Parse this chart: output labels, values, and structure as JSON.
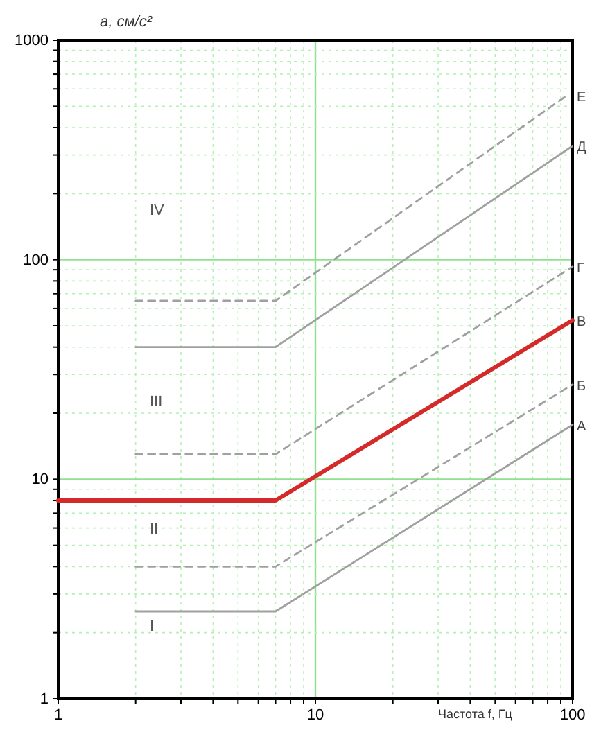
{
  "chart_data": {
    "type": "line",
    "xlabel": "Частота f, Гц",
    "ylabel": "a, см/с²",
    "log": "xy",
    "grid": true,
    "xlim": [
      1,
      100
    ],
    "ylim": [
      1,
      1000
    ],
    "xticks": [
      1,
      {
        "value": 2,
        "label": null
      },
      {
        "value": 3,
        "label": null
      },
      {
        "value": 4,
        "label": null
      },
      {
        "value": 5,
        "label": null
      },
      {
        "value": 6,
        "label": null
      },
      {
        "value": 7,
        "label": null
      },
      {
        "value": 8,
        "label": null
      },
      {
        "value": 9,
        "label": null
      },
      10,
      {
        "value": 20,
        "label": null
      },
      {
        "value": 30,
        "label": null
      },
      {
        "value": 40,
        "label": null
      },
      {
        "value": 50,
        "label": null
      },
      {
        "value": 60,
        "label": null
      },
      {
        "value": 70,
        "label": null
      },
      {
        "value": 80,
        "label": null
      },
      {
        "value": 90,
        "label": null
      },
      100
    ],
    "yticks": [
      1,
      {
        "value": 2,
        "label": null
      },
      {
        "value": 3,
        "label": null
      },
      {
        "value": 4,
        "label": null
      },
      {
        "value": 5,
        "label": null
      },
      {
        "value": 6,
        "label": null
      },
      {
        "value": 7,
        "label": null
      },
      {
        "value": 8,
        "label": null
      },
      {
        "value": 9,
        "label": null
      },
      10,
      {
        "value": 20,
        "label": null
      },
      {
        "value": 30,
        "label": null
      },
      {
        "value": 40,
        "label": null
      },
      {
        "value": 50,
        "label": null
      },
      {
        "value": 60,
        "label": null
      },
      {
        "value": 70,
        "label": null
      },
      {
        "value": 80,
        "label": null
      },
      {
        "value": 90,
        "label": null
      },
      100,
      {
        "value": 200,
        "label": null
      },
      {
        "value": 300,
        "label": null
      },
      {
        "value": 400,
        "label": null
      },
      {
        "value": 500,
        "label": null
      },
      {
        "value": 600,
        "label": null
      },
      {
        "value": 700,
        "label": null
      },
      {
        "value": 800,
        "label": null
      },
      {
        "value": 900,
        "label": null
      },
      1000
    ],
    "series": [
      {
        "name": "А",
        "color": "#a0a0a0",
        "line_style": "solid",
        "x": [
          2,
          7,
          100
        ],
        "values": [
          2.5,
          2.5,
          17.7
        ]
      },
      {
        "name": "Б",
        "color": "#a0a0a0",
        "line_style": "dashed",
        "x": [
          2,
          7,
          100
        ],
        "values": [
          4,
          4,
          27
        ]
      },
      {
        "name": "В",
        "color": "#d42a2a",
        "line_style": "solid",
        "x": [
          1,
          7,
          100
        ],
        "values": [
          8,
          8,
          53
        ]
      },
      {
        "name": "Г",
        "color": "#a0a0a0",
        "line_style": "dashed",
        "x": [
          2,
          7,
          100
        ],
        "values": [
          13,
          13,
          93
        ]
      },
      {
        "name": "Д",
        "color": "#a0a0a0",
        "line_style": "solid",
        "x": [
          2,
          7,
          100
        ],
        "values": [
          40,
          40,
          330
        ]
      },
      {
        "name": "Е",
        "color": "#a0a0a0",
        "line_style": "dashed",
        "x": [
          2,
          7,
          95
        ],
        "values": [
          65,
          65,
          560
        ]
      }
    ],
    "annotations": [
      "I",
      "II",
      "III",
      "IV"
    ]
  }
}
